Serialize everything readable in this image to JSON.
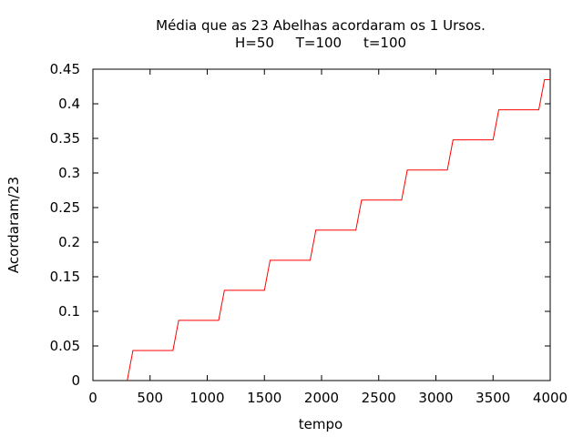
{
  "chart_data": {
    "type": "line",
    "title_line1": "Média que as 23 Abelhas acordaram os 1 Ursos.",
    "title_line2": "H=50     T=100     t=100",
    "xlabel": "tempo",
    "ylabel": "Acordaram/23",
    "xlim": [
      0,
      4000
    ],
    "ylim": [
      0,
      0.45
    ],
    "xticks": [
      "0",
      "500",
      "1000",
      "1500",
      "2000",
      "2500",
      "3000",
      "3500",
      "4000"
    ],
    "yticks": [
      "0",
      "0.05",
      "0.1",
      "0.15",
      "0.2",
      "0.25",
      "0.3",
      "0.35",
      "0.4",
      "0.45"
    ],
    "grid": false,
    "line_color": "#ff0000",
    "series": [
      {
        "x": [
          300,
          350,
          700,
          750,
          1100,
          1150,
          1500,
          1550,
          1900,
          1950,
          2300,
          2350,
          2700,
          2750,
          3100,
          3150,
          3500,
          3550,
          3900,
          3950,
          4000
        ],
        "y": [
          0,
          0.0435,
          0.0435,
          0.087,
          0.087,
          0.1304,
          0.1304,
          0.1739,
          0.1739,
          0.2174,
          0.2174,
          0.2609,
          0.2609,
          0.3043,
          0.3043,
          0.3478,
          0.3478,
          0.3913,
          0.3913,
          0.4348,
          0.4348
        ]
      }
    ]
  }
}
